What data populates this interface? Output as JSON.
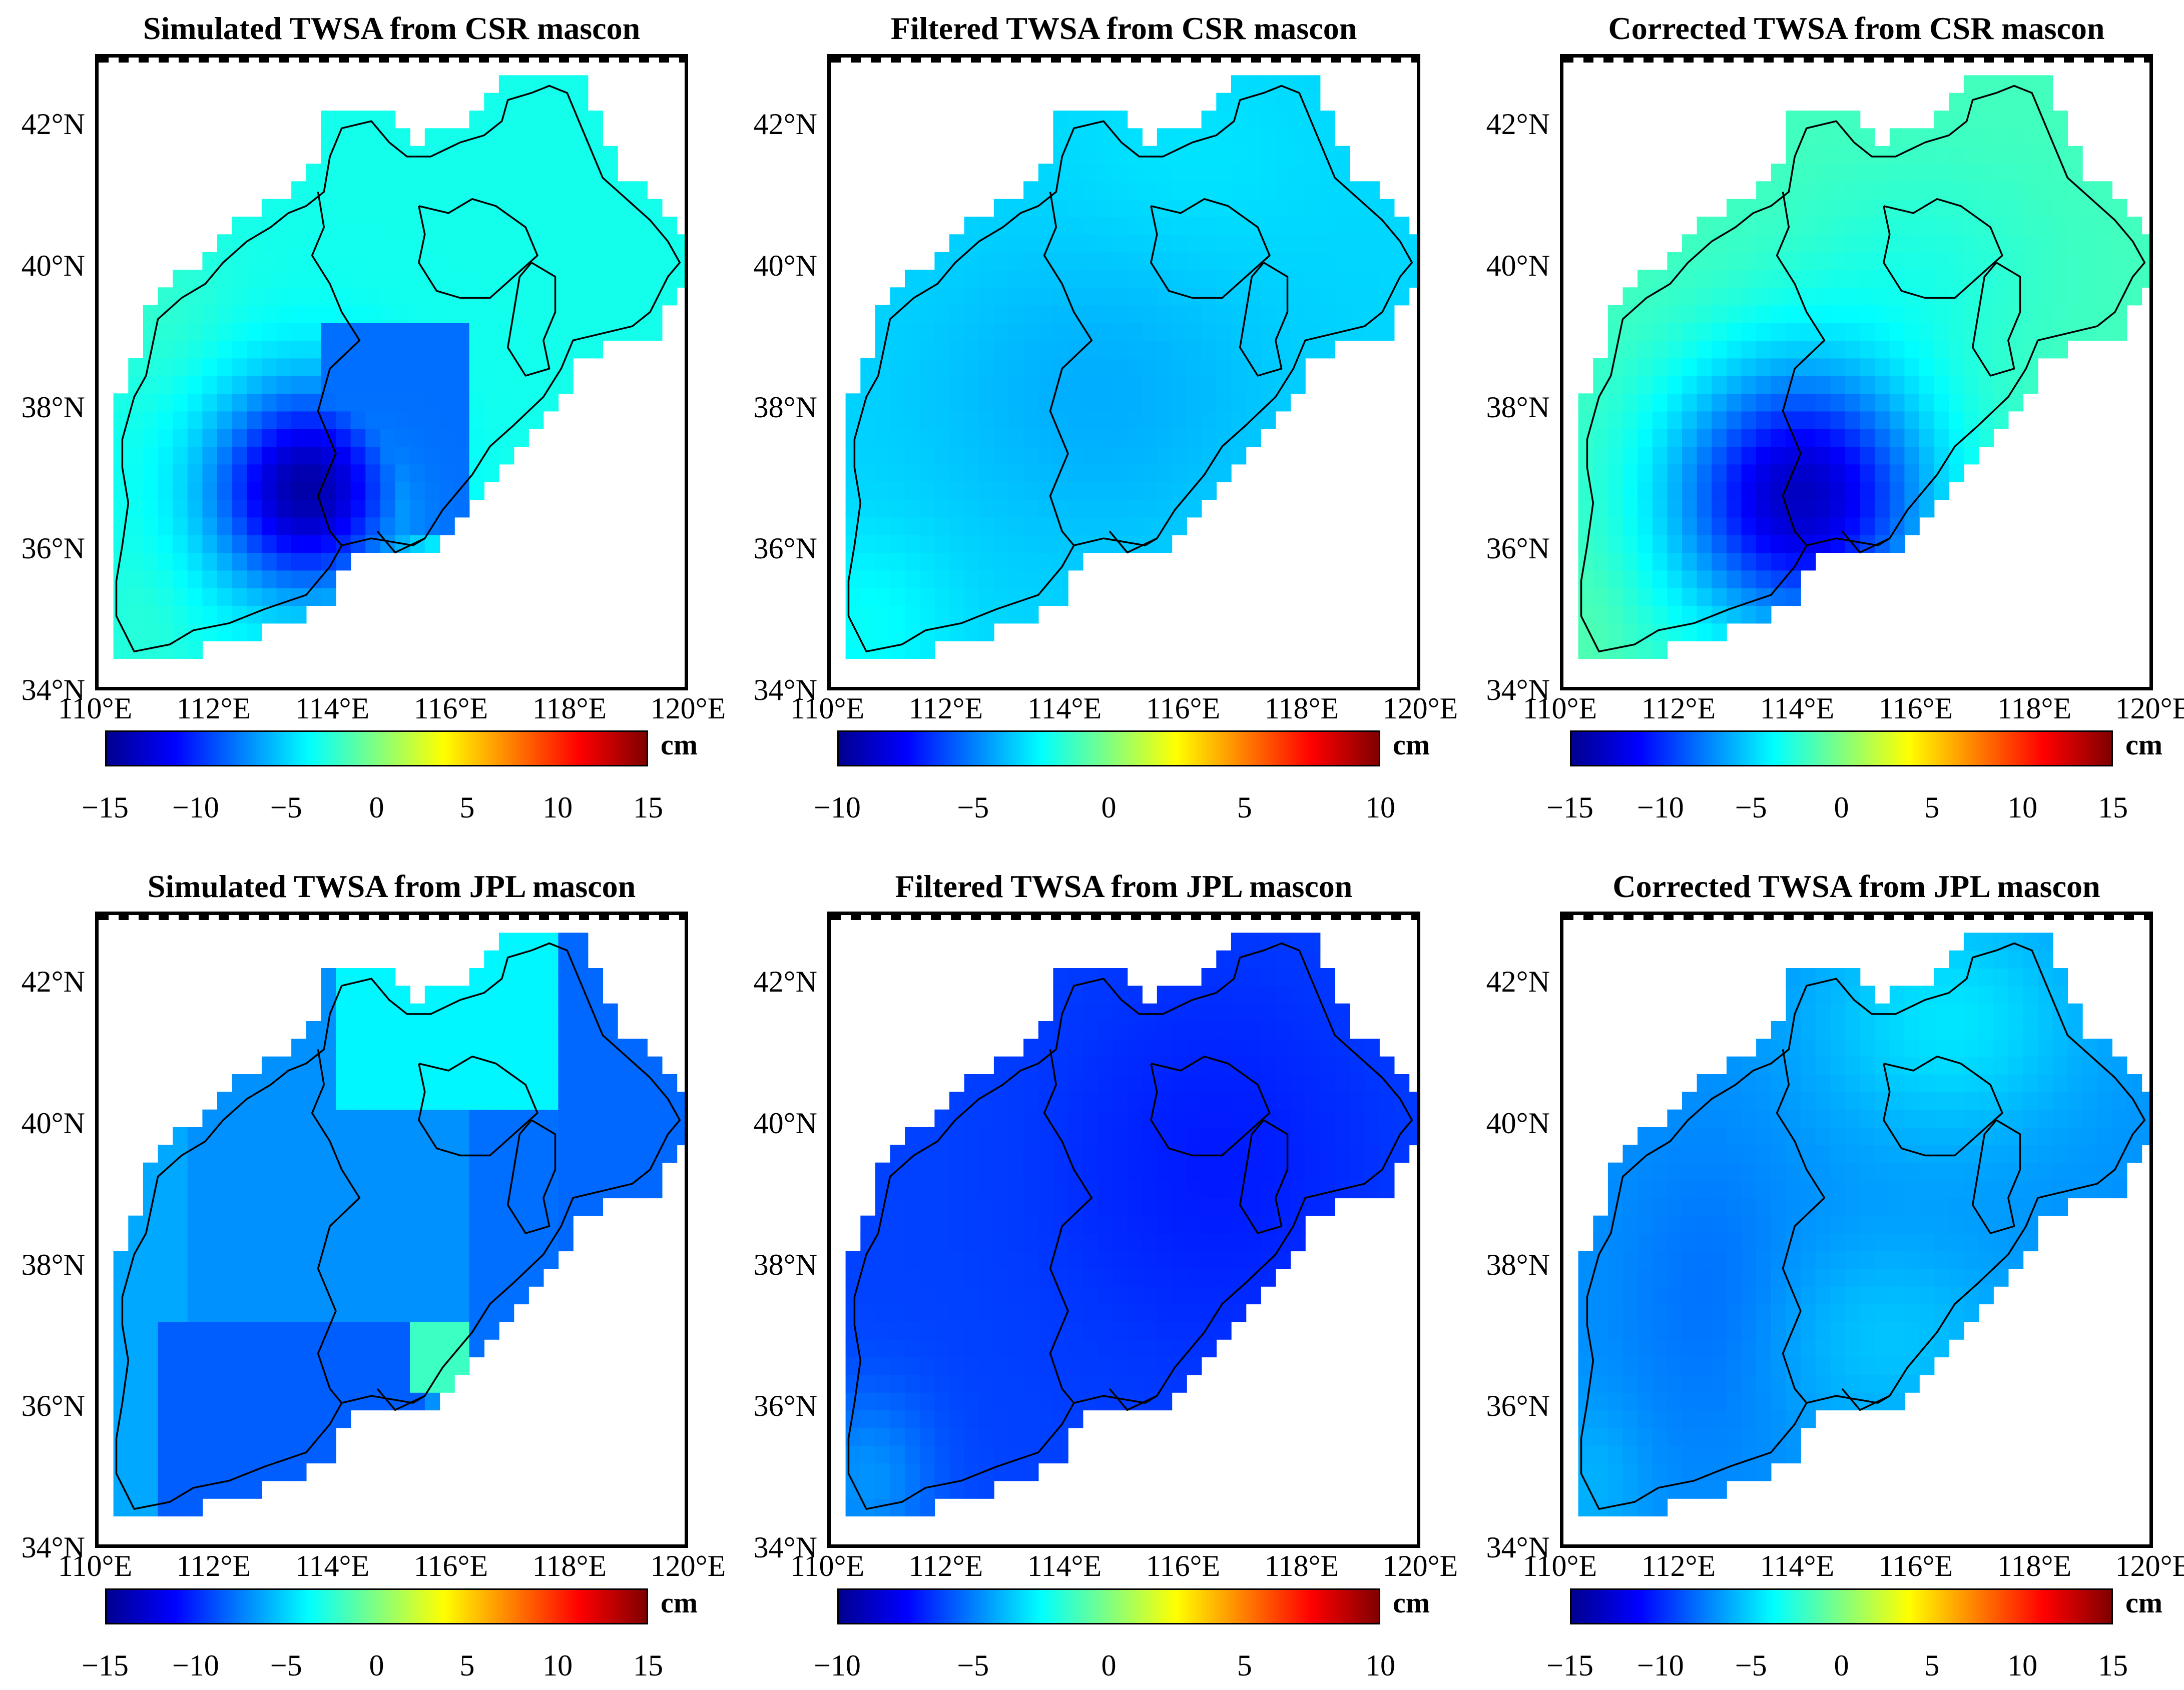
{
  "colormap": [
    "#00008f",
    "#0000ff",
    "#0080ff",
    "#00ffff",
    "#80ff80",
    "#ffff00",
    "#ff8000",
    "#ff0000",
    "#800000"
  ],
  "outline_color": "#000000",
  "lat_labels": [
    "42°N",
    "40°N",
    "38°N",
    "36°N",
    "34°N"
  ],
  "lon_labels": [
    "110°E",
    "112°E",
    "114°E",
    "116°E",
    "118°E",
    "120°E"
  ],
  "colorbar_unit": "cm",
  "panels": [
    {
      "title": "Simulated TWSA from CSR mascon",
      "ticks": [
        "−15",
        "−10",
        "−5",
        "0",
        "5",
        "10",
        "15"
      ],
      "range": [
        -15,
        15
      ],
      "pattern": "csr_sim"
    },
    {
      "title": "Filtered TWSA from CSR mascon",
      "ticks": [
        "−10",
        "−5",
        "0",
        "5",
        "10"
      ],
      "range": [
        -10,
        10
      ],
      "pattern": "csr_filt"
    },
    {
      "title": "Corrected TWSA from CSR mascon",
      "ticks": [
        "−15",
        "−10",
        "−5",
        "0",
        "5",
        "10",
        "15"
      ],
      "range": [
        -15,
        15
      ],
      "pattern": "csr_corr"
    },
    {
      "title": "Simulated TWSA from JPL mascon",
      "ticks": [
        "−15",
        "−10",
        "−5",
        "0",
        "5",
        "10",
        "15"
      ],
      "range": [
        -15,
        15
      ],
      "pattern": "jpl_sim"
    },
    {
      "title": "Filtered TWSA from JPL mascon",
      "ticks": [
        "−10",
        "−5",
        "0",
        "5",
        "10"
      ],
      "range": [
        -10,
        10
      ],
      "pattern": "jpl_filt"
    },
    {
      "title": "Corrected TWSA from JPL mascon",
      "ticks": [
        "−15",
        "−10",
        "−5",
        "0",
        "5",
        "10",
        "15"
      ],
      "range": [
        -15,
        15
      ],
      "pattern": "jpl_corr"
    }
  ]
}
